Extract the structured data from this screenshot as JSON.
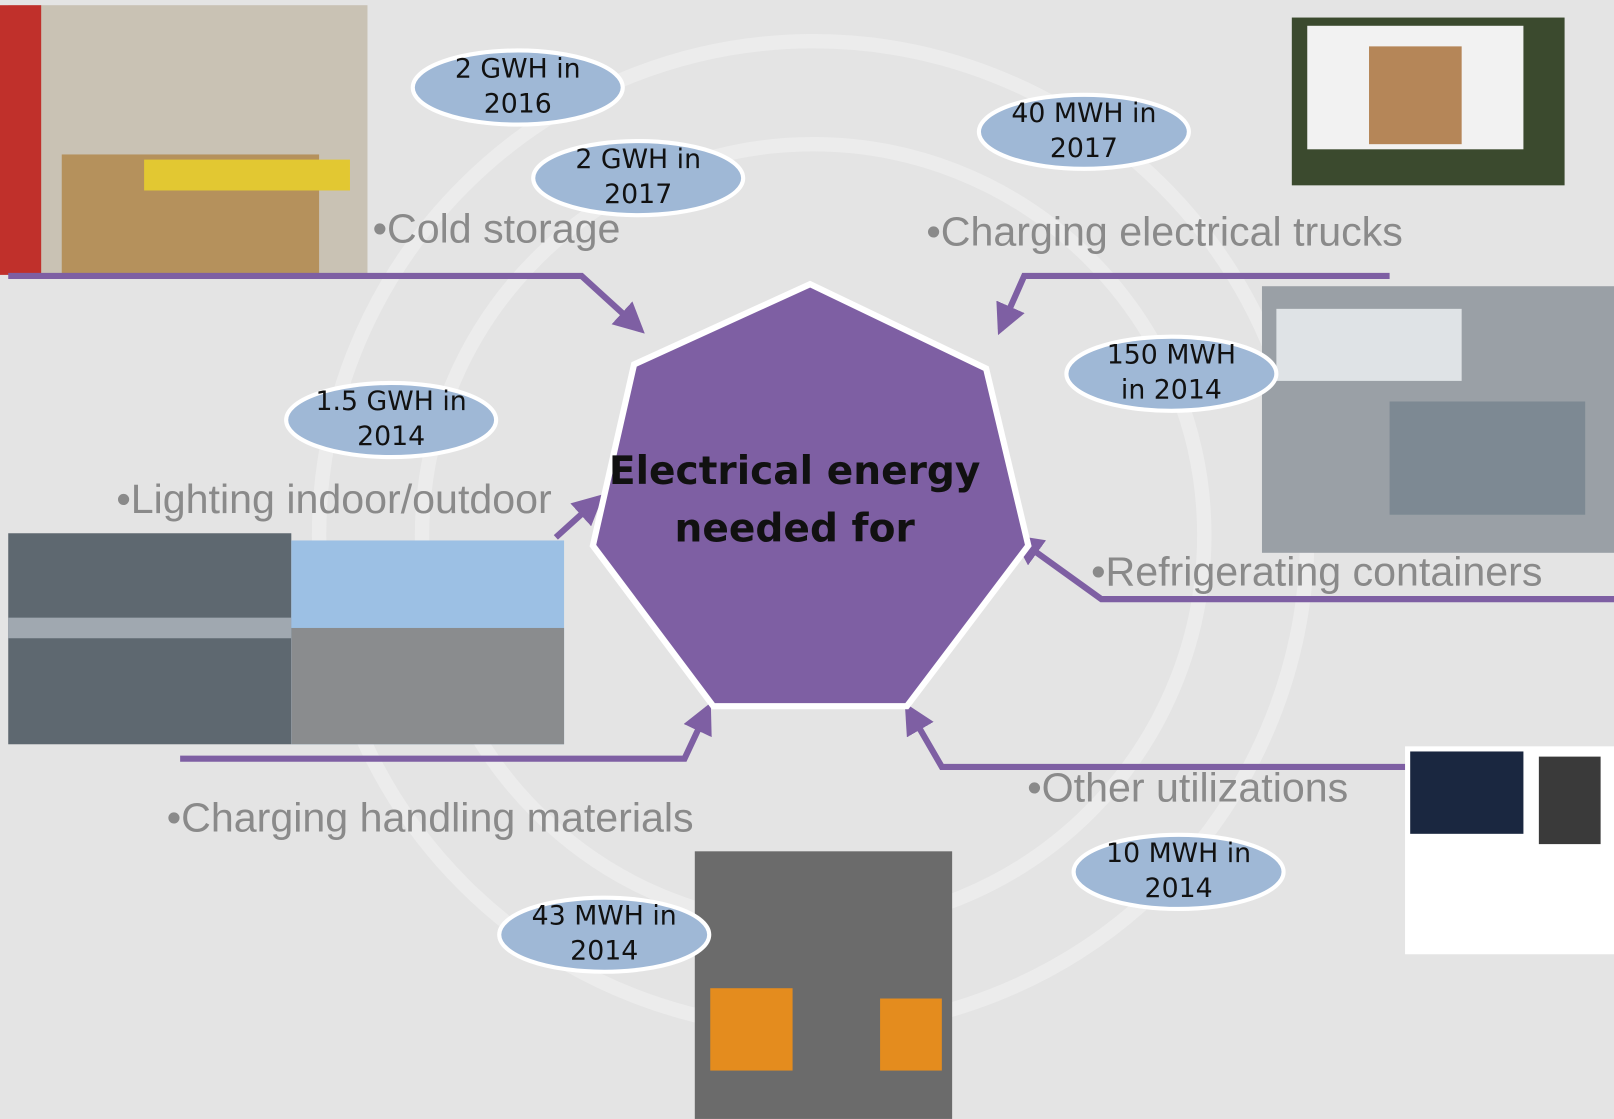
{
  "center": {
    "lines": [
      "Electrical energy",
      "needed for"
    ]
  },
  "items": [
    {
      "label": "•Cold storage",
      "badges": [
        {
          "lines": [
            "2 GWH in",
            "2016"
          ]
        },
        {
          "lines": [
            "2 GWH in",
            "2017"
          ]
        }
      ]
    },
    {
      "label": "•Charging electrical trucks",
      "badges": [
        {
          "lines": [
            "40 MWH in",
            "2017"
          ]
        }
      ]
    },
    {
      "label": "•Refrigerating containers",
      "badges": [
        {
          "lines": [
            "150 MWH",
            "in 2014"
          ]
        }
      ]
    },
    {
      "label": "•Lighting indoor/outdoor",
      "badges": [
        {
          "lines": [
            "1.5 GWH in",
            "2014"
          ]
        }
      ]
    },
    {
      "label": "•Charging handling materials",
      "badges": [
        {
          "lines": [
            "43 MWH in",
            "2014"
          ]
        }
      ]
    },
    {
      "label": "•Other utilizations",
      "badges": [
        {
          "lines": [
            "10 MWH in",
            "2014"
          ]
        }
      ]
    }
  ]
}
